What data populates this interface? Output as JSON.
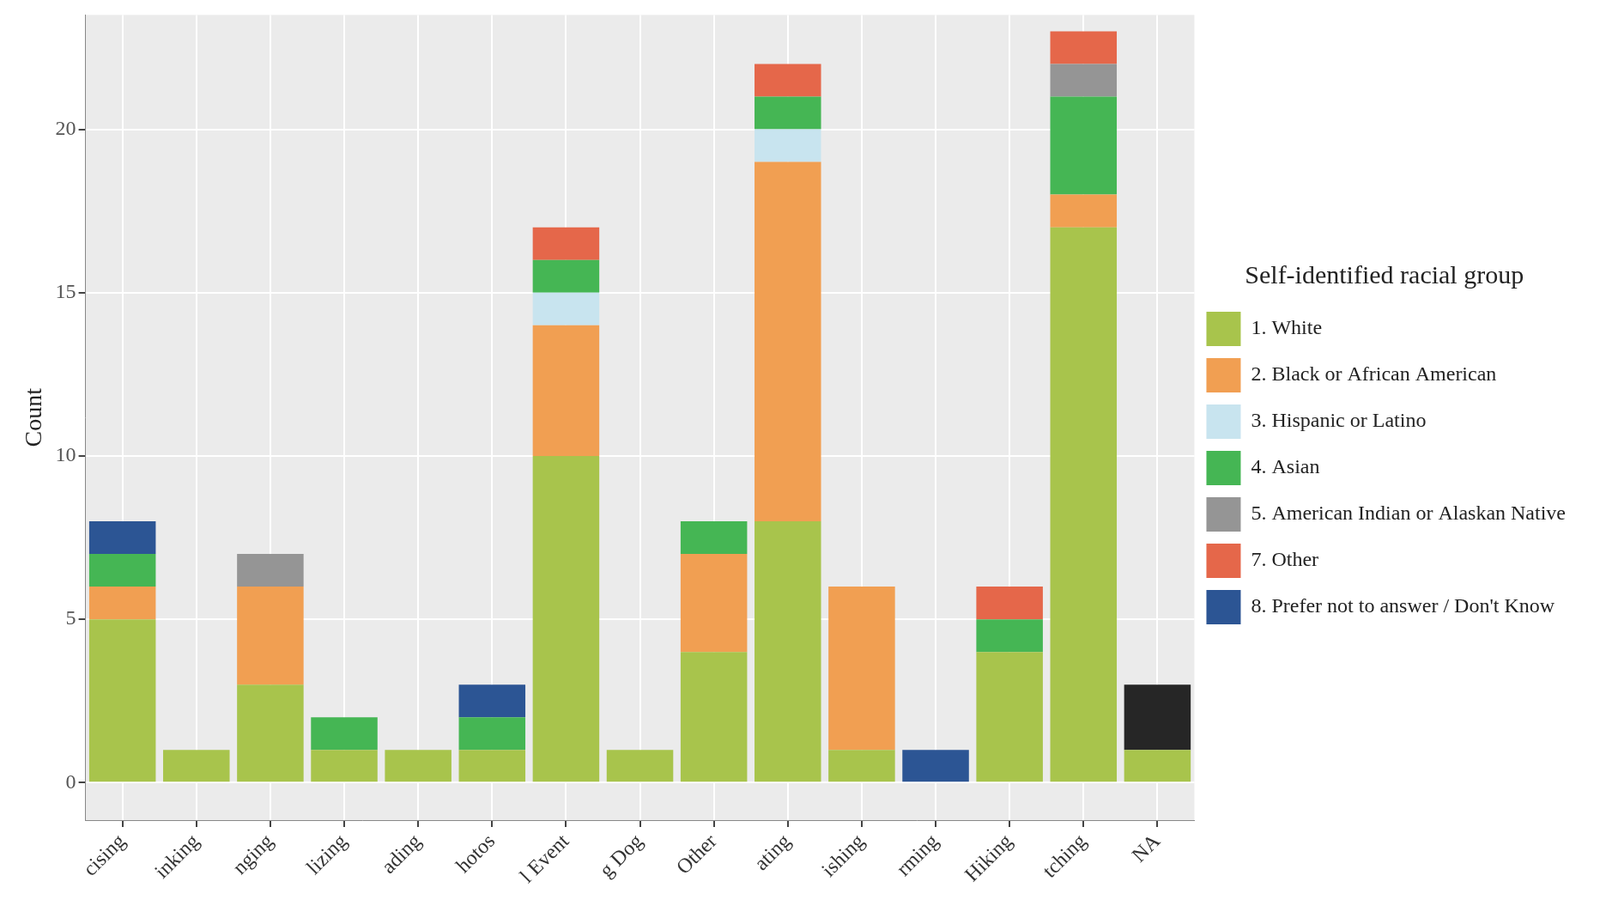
{
  "chart_data": {
    "type": "bar",
    "stacked": true,
    "grid": true,
    "legend": "right",
    "legend_title": "Self-identified racial group",
    "y_label": "Count",
    "categories": [
      "cising",
      "inking",
      "nging",
      "lizing",
      "ading",
      "hotos",
      "l Event",
      "g Dog",
      "Other",
      "ating",
      "ishing",
      "rming",
      "Hiking",
      "tching",
      "NA"
    ],
    "ylim": [
      -1.15,
      23.5
    ],
    "yticks": [
      0,
      5,
      10,
      15,
      20
    ],
    "series": [
      {
        "name": "1. White",
        "color": "#a8c44c",
        "values": [
          5,
          1,
          3,
          1,
          1,
          1,
          10,
          1,
          4,
          8,
          1,
          0,
          4,
          17,
          1
        ]
      },
      {
        "name": "2. Black or African American",
        "color": "#f19f52",
        "values": [
          1,
          0,
          3,
          0,
          0,
          0,
          4,
          0,
          3,
          11,
          5,
          0,
          0,
          1,
          0
        ]
      },
      {
        "name": "3. Hispanic or Latino",
        "color": "#c8e4ef",
        "values": [
          0,
          0,
          0,
          0,
          0,
          0,
          1,
          0,
          0,
          1,
          0,
          0,
          0,
          0,
          0
        ]
      },
      {
        "name": "4. Asian",
        "color": "#45b654",
        "values": [
          1,
          0,
          0,
          1,
          0,
          1,
          1,
          0,
          1,
          1,
          0,
          0,
          1,
          3,
          0
        ]
      },
      {
        "name": "5. American Indian or Alaskan Native",
        "color": "#959595",
        "values": [
          0,
          0,
          1,
          0,
          0,
          0,
          0,
          0,
          0,
          0,
          0,
          0,
          0,
          1,
          0
        ]
      },
      {
        "name": "7. Other",
        "color": "#e5674a",
        "values": [
          0,
          0,
          0,
          0,
          0,
          0,
          1,
          0,
          0,
          1,
          0,
          0,
          1,
          1,
          0
        ]
      },
      {
        "name": "8. Prefer not to answer / Don't Know",
        "color": "#2c5594",
        "values": [
          1,
          0,
          0,
          0,
          0,
          1,
          0,
          0,
          0,
          0,
          0,
          1,
          0,
          0,
          0
        ]
      },
      {
        "color": "#262626",
        "values": [
          0,
          0,
          0,
          0,
          0,
          0,
          0,
          0,
          0,
          0,
          0,
          0,
          0,
          0,
          2
        ]
      }
    ]
  }
}
